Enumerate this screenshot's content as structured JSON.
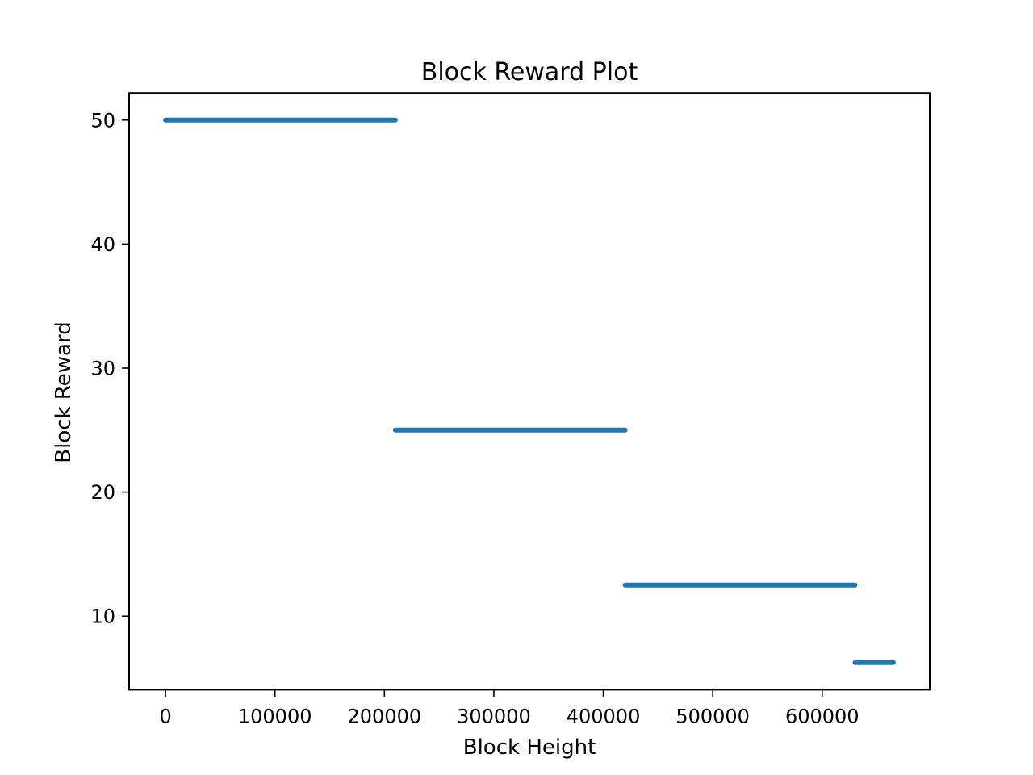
{
  "chart_data": {
    "type": "line",
    "title": "Block Reward Plot",
    "xlabel": "Block Height",
    "ylabel": "Block Reward",
    "xlim": [
      -33250,
      698250
    ],
    "ylim": [
      4.0625,
      52.1875
    ],
    "xticks": [
      0,
      100000,
      200000,
      300000,
      400000,
      500000,
      600000
    ],
    "xtick_labels": [
      "0",
      "100000",
      "200000",
      "300000",
      "400000",
      "500000",
      "600000"
    ],
    "yticks": [
      10,
      20,
      30,
      40,
      50
    ],
    "ytick_labels": [
      "10",
      "20",
      "30",
      "40",
      "50"
    ],
    "grid": false,
    "legend": "none",
    "series": [
      {
        "color": "#1f77b4",
        "segments": [
          {
            "x": [
              0,
              209999
            ],
            "y": [
              50,
              50
            ]
          },
          {
            "x": [
              210000,
              419999
            ],
            "y": [
              25,
              25
            ]
          },
          {
            "x": [
              420000,
              629999
            ],
            "y": [
              12.5,
              12.5
            ]
          },
          {
            "x": [
              630000,
              665000
            ],
            "y": [
              6.25,
              6.25
            ]
          }
        ]
      }
    ]
  }
}
